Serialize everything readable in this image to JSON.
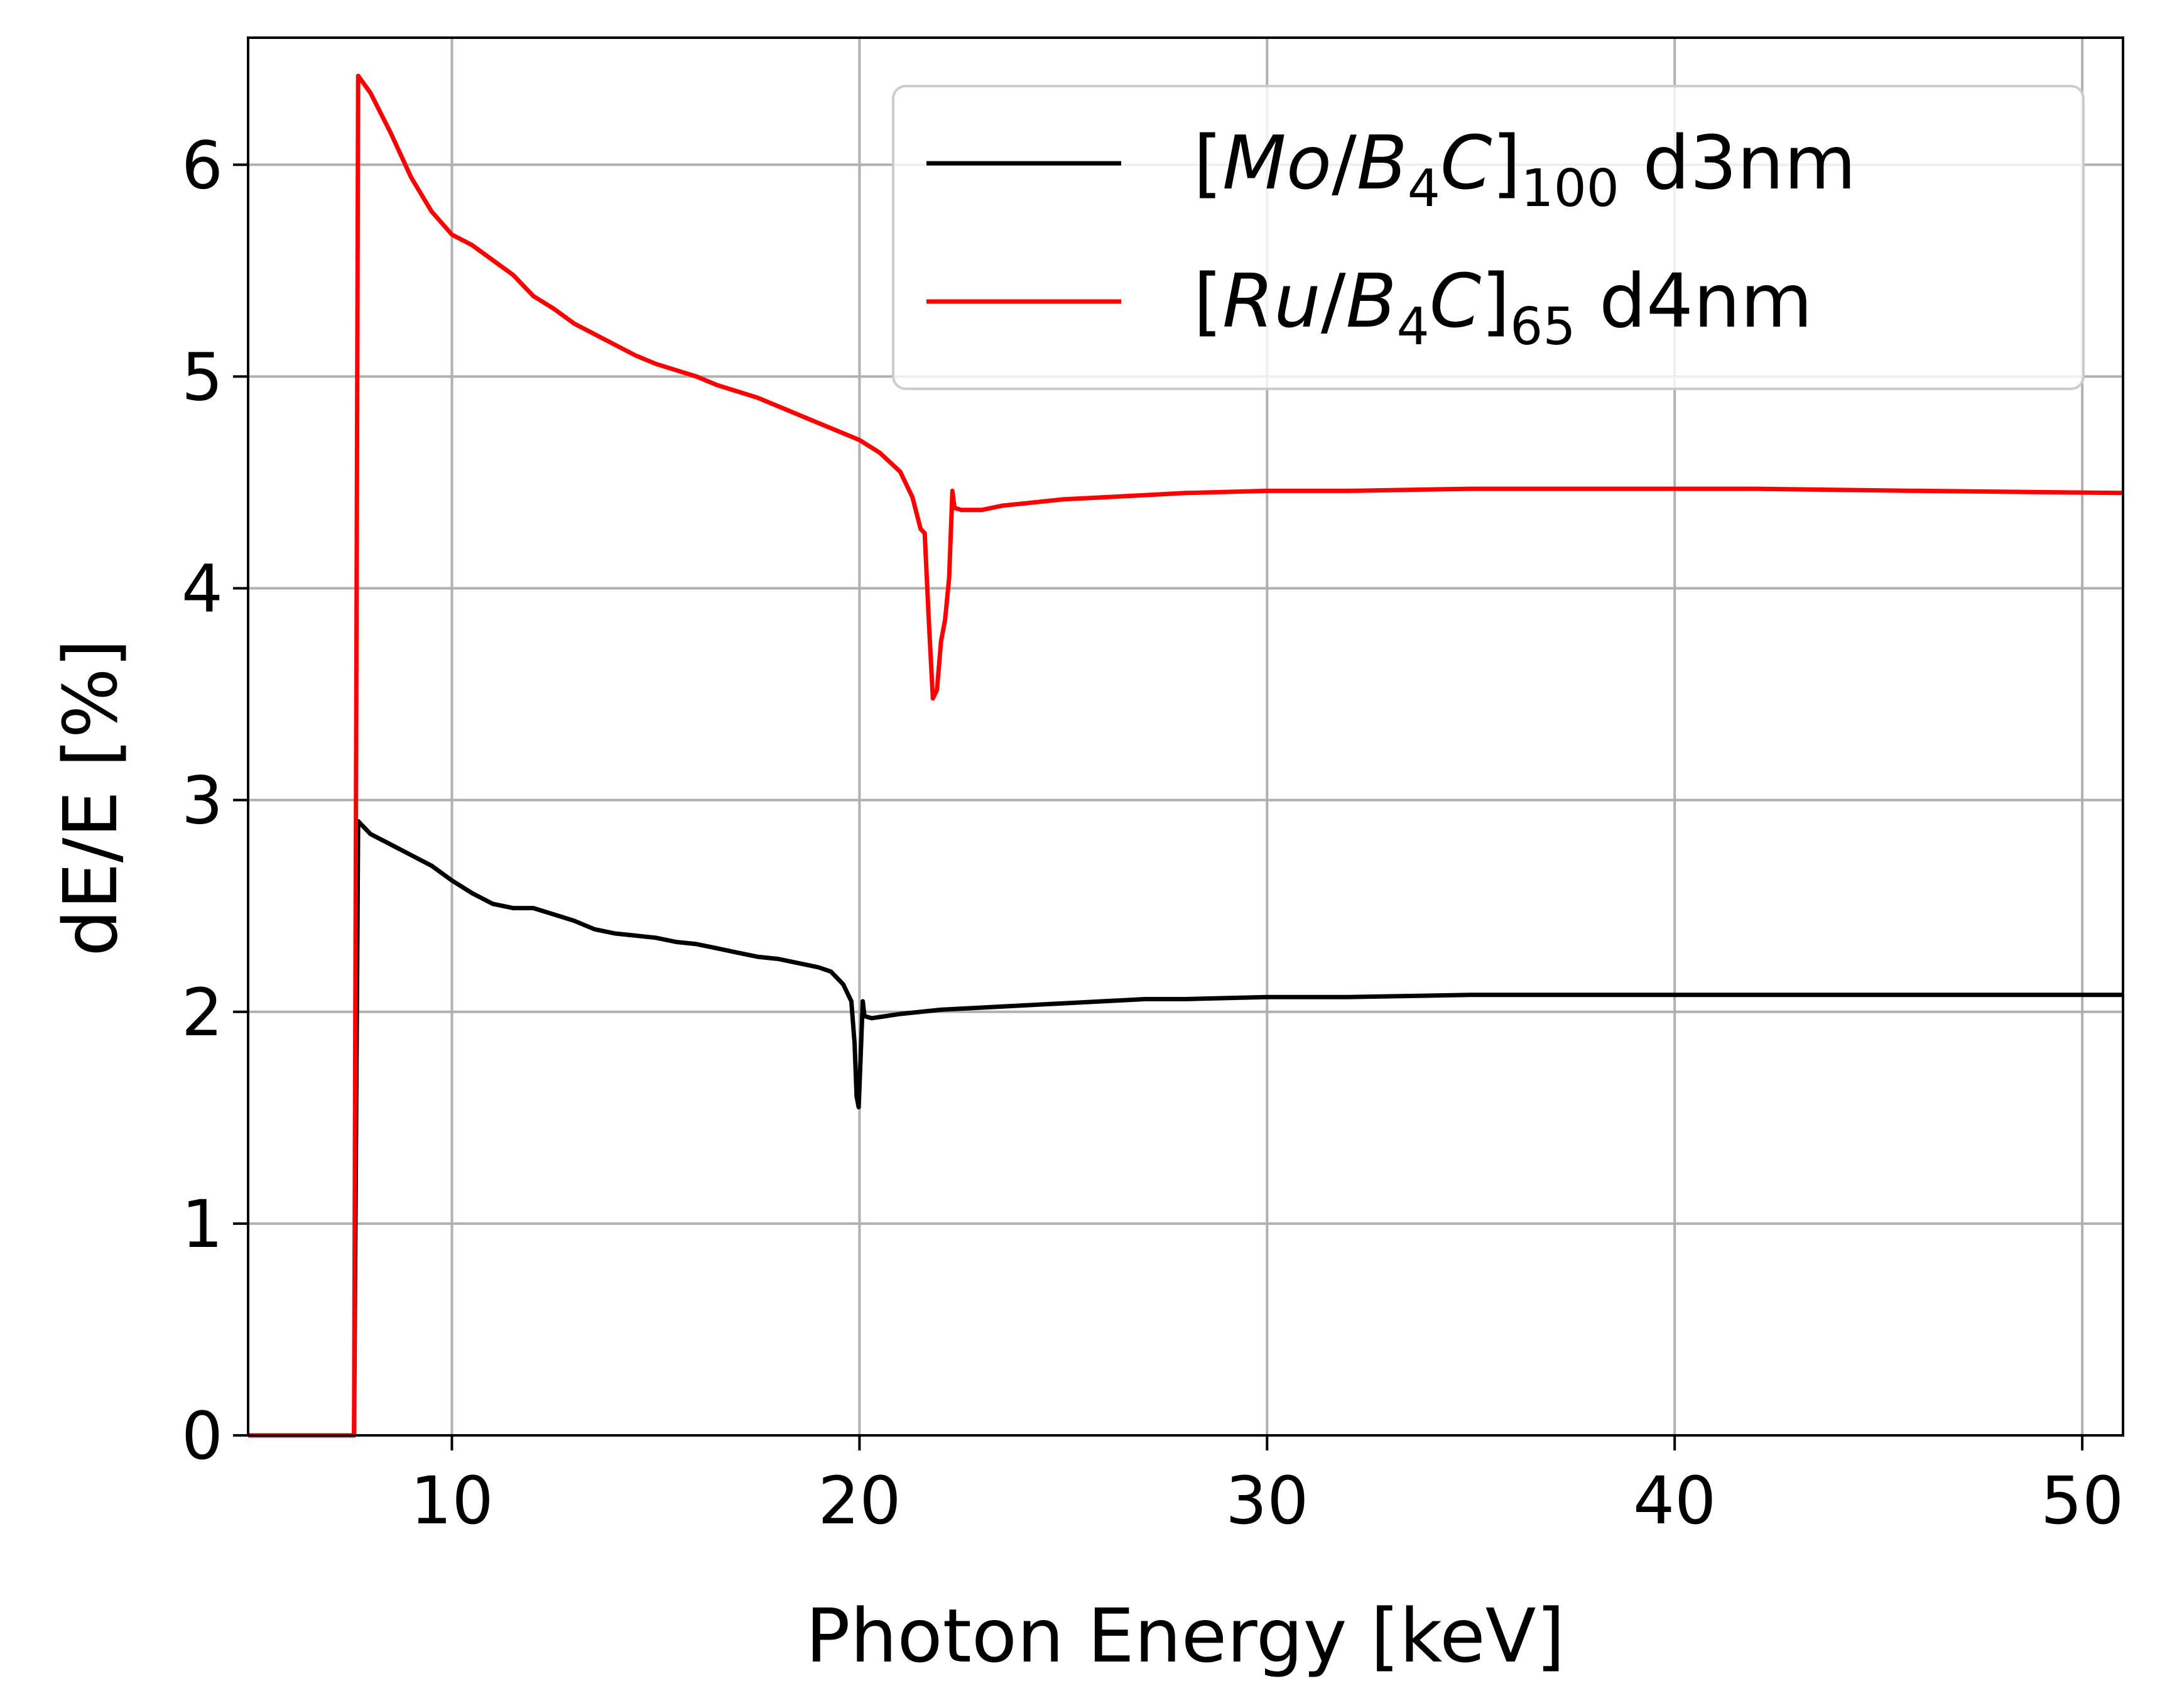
{
  "chart_data": {
    "type": "line",
    "xlabel": "Photon Energy [keV]",
    "ylabel": "dE/E [%]",
    "xlim": [
      5,
      51
    ],
    "ylim": [
      0,
      6.6
    ],
    "xticks": [
      10,
      20,
      30,
      40,
      50
    ],
    "yticks": [
      0,
      1,
      2,
      3,
      4,
      5,
      6
    ],
    "xtick_labels": [
      "10",
      "20",
      "30",
      "40",
      "50"
    ],
    "ytick_labels": [
      "0",
      "1",
      "2",
      "3",
      "4",
      "5",
      "6"
    ],
    "grid": true,
    "legend_position": "top-right",
    "series": [
      {
        "name": "[Mo/B4C]100 d3nm",
        "legend": {
          "open": "[",
          "m1": "Mo",
          "slash": "/",
          "m2": "B",
          "sub1": "4",
          "m3": "C",
          "close": "]",
          "sub2": "100",
          "tail": " d3nm"
        },
        "color": "#000000",
        "points": [
          [
            5,
            0
          ],
          [
            7.6,
            0
          ],
          [
            7.6,
            0
          ],
          [
            7.7,
            2.9
          ],
          [
            8.0,
            2.84
          ],
          [
            8.5,
            2.79
          ],
          [
            9.0,
            2.74
          ],
          [
            9.5,
            2.69
          ],
          [
            10,
            2.62
          ],
          [
            10.5,
            2.56
          ],
          [
            11,
            2.51
          ],
          [
            11.5,
            2.49
          ],
          [
            12,
            2.49
          ],
          [
            12.5,
            2.46
          ],
          [
            13,
            2.43
          ],
          [
            13.5,
            2.39
          ],
          [
            14,
            2.37
          ],
          [
            14.5,
            2.36
          ],
          [
            15,
            2.35
          ],
          [
            15.5,
            2.33
          ],
          [
            16,
            2.32
          ],
          [
            16.5,
            2.3
          ],
          [
            17,
            2.28
          ],
          [
            17.5,
            2.26
          ],
          [
            18,
            2.25
          ],
          [
            18.5,
            2.23
          ],
          [
            19,
            2.21
          ],
          [
            19.3,
            2.19
          ],
          [
            19.6,
            2.13
          ],
          [
            19.8,
            2.05
          ],
          [
            19.88,
            1.85
          ],
          [
            19.93,
            1.6
          ],
          [
            19.98,
            1.55
          ],
          [
            20.02,
            1.75
          ],
          [
            20.08,
            2.05
          ],
          [
            20.12,
            1.98
          ],
          [
            20.3,
            1.97
          ],
          [
            21,
            1.99
          ],
          [
            22,
            2.01
          ],
          [
            23,
            2.02
          ],
          [
            24,
            2.03
          ],
          [
            25,
            2.04
          ],
          [
            26,
            2.05
          ],
          [
            27,
            2.06
          ],
          [
            28,
            2.06
          ],
          [
            30,
            2.07
          ],
          [
            32,
            2.07
          ],
          [
            35,
            2.08
          ],
          [
            38,
            2.08
          ],
          [
            42,
            2.08
          ],
          [
            46,
            2.08
          ],
          [
            51,
            2.08
          ]
        ]
      },
      {
        "name": "[Ru/B4C]65 d4nm",
        "legend": {
          "open": "[",
          "m1": "Ru",
          "slash": "/",
          "m2": "B",
          "sub1": "4",
          "m3": "C",
          "close": "]",
          "sub2": "65",
          "tail": " d4nm"
        },
        "color": "#ff0000",
        "points": [
          [
            5,
            0
          ],
          [
            7.6,
            0
          ],
          [
            7.6,
            0
          ],
          [
            7.7,
            6.42
          ],
          [
            8.0,
            6.34
          ],
          [
            8.5,
            6.15
          ],
          [
            9.0,
            5.94
          ],
          [
            9.5,
            5.78
          ],
          [
            10,
            5.67
          ],
          [
            10.5,
            5.62
          ],
          [
            11,
            5.55
          ],
          [
            11.5,
            5.48
          ],
          [
            12,
            5.38
          ],
          [
            12.5,
            5.32
          ],
          [
            13,
            5.25
          ],
          [
            13.5,
            5.2
          ],
          [
            14,
            5.15
          ],
          [
            14.5,
            5.1
          ],
          [
            15,
            5.06
          ],
          [
            15.5,
            5.03
          ],
          [
            16,
            5.0
          ],
          [
            16.5,
            4.96
          ],
          [
            17,
            4.93
          ],
          [
            17.5,
            4.9
          ],
          [
            18,
            4.86
          ],
          [
            18.5,
            4.82
          ],
          [
            19,
            4.78
          ],
          [
            19.5,
            4.74
          ],
          [
            20,
            4.7
          ],
          [
            20.5,
            4.64
          ],
          [
            21,
            4.55
          ],
          [
            21.3,
            4.43
          ],
          [
            21.5,
            4.28
          ],
          [
            21.6,
            4.26
          ],
          [
            21.7,
            3.85
          ],
          [
            21.8,
            3.48
          ],
          [
            21.9,
            3.52
          ],
          [
            22.0,
            3.75
          ],
          [
            22.1,
            3.85
          ],
          [
            22.2,
            4.05
          ],
          [
            22.28,
            4.46
          ],
          [
            22.33,
            4.38
          ],
          [
            22.5,
            4.37
          ],
          [
            23,
            4.37
          ],
          [
            23.5,
            4.39
          ],
          [
            24,
            4.4
          ],
          [
            25,
            4.42
          ],
          [
            26,
            4.43
          ],
          [
            27,
            4.44
          ],
          [
            28,
            4.45
          ],
          [
            30,
            4.46
          ],
          [
            32,
            4.46
          ],
          [
            35,
            4.47
          ],
          [
            38,
            4.47
          ],
          [
            42,
            4.47
          ],
          [
            46,
            4.46
          ],
          [
            51,
            4.45
          ]
        ]
      }
    ]
  }
}
